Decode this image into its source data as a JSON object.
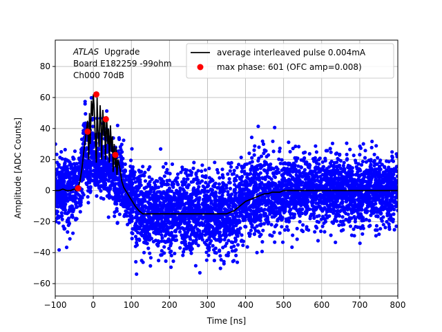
{
  "chart_data": {
    "type": "scatter",
    "title": "",
    "xlabel": "Time [ns]",
    "ylabel": "Amplitude [ADC Counts]",
    "xlim": [
      -100,
      800
    ],
    "ylim": [
      -68,
      97
    ],
    "xticks": [
      -100,
      0,
      100,
      200,
      300,
      400,
      500,
      600,
      700,
      800
    ],
    "yticks": [
      -60,
      -40,
      -20,
      0,
      20,
      40,
      60,
      80
    ],
    "grid": true,
    "legend_position": "top-right",
    "annotation": {
      "lines": [
        "Upgrade",
        "Board E182259 -99ohm",
        "Ch000 70dB"
      ],
      "italic_prefix": "ATLAS"
    },
    "series": [
      {
        "name": "average interleaved pulse 0.004mA",
        "kind": "line",
        "color": "#000000",
        "x": [
          -100,
          -90,
          -80,
          -70,
          -60,
          -50,
          -45,
          -40,
          -35,
          -30,
          -25,
          -20,
          -15,
          -12,
          -10,
          -8,
          -5,
          -2,
          0,
          2,
          5,
          8,
          10,
          12,
          15,
          18,
          20,
          22,
          25,
          28,
          30,
          32,
          35,
          38,
          40,
          42,
          45,
          48,
          50,
          52,
          55,
          58,
          60,
          62,
          65,
          70,
          75,
          80,
          90,
          100,
          110,
          120,
          130,
          140,
          150,
          160,
          170,
          180,
          190,
          200,
          210,
          220,
          230,
          240,
          250,
          260,
          270,
          280,
          290,
          300,
          310,
          320,
          330,
          340,
          350,
          360,
          370,
          380,
          390,
          400,
          410,
          420,
          430,
          440,
          450,
          460,
          470,
          480,
          490,
          500,
          520,
          540,
          560,
          580,
          600,
          620,
          640,
          660,
          680,
          700,
          720,
          740,
          760,
          780,
          800
        ],
        "y": [
          0,
          0,
          1,
          0,
          0,
          1,
          0,
          2,
          6,
          14,
          25,
          35,
          45,
          20,
          50,
          30,
          58,
          48,
          62,
          55,
          35,
          18,
          60,
          40,
          28,
          55,
          45,
          20,
          52,
          35,
          45,
          20,
          48,
          30,
          40,
          18,
          42,
          25,
          35,
          12,
          30,
          15,
          28,
          10,
          20,
          14,
          6,
          2,
          -2,
          -6,
          -10,
          -13,
          -15,
          -15,
          -15,
          -15,
          -15,
          -15,
          -15,
          -15,
          -15,
          -15,
          -15,
          -15,
          -15,
          -15,
          -15,
          -15,
          -15,
          -15,
          -15,
          -15,
          -15,
          -15,
          -15,
          -14,
          -13,
          -11,
          -9,
          -7,
          -6,
          -5,
          -4,
          -3,
          -2,
          -2,
          -1,
          -1,
          -1,
          0,
          0,
          0,
          0,
          0,
          0,
          0,
          0,
          0,
          0,
          0,
          0,
          0,
          0,
          0,
          0
        ]
      },
      {
        "name": "max phase: 601 (OFC amp=0.008)",
        "kind": "points",
        "color": "#ff0000",
        "x": [
          -40,
          -15,
          8,
          33,
          58
        ],
        "y": [
          1.5,
          38,
          62,
          46,
          23
        ]
      },
      {
        "name": "",
        "kind": "scatter-cloud",
        "color": "#0000ff",
        "description_note": ""
      }
    ]
  }
}
